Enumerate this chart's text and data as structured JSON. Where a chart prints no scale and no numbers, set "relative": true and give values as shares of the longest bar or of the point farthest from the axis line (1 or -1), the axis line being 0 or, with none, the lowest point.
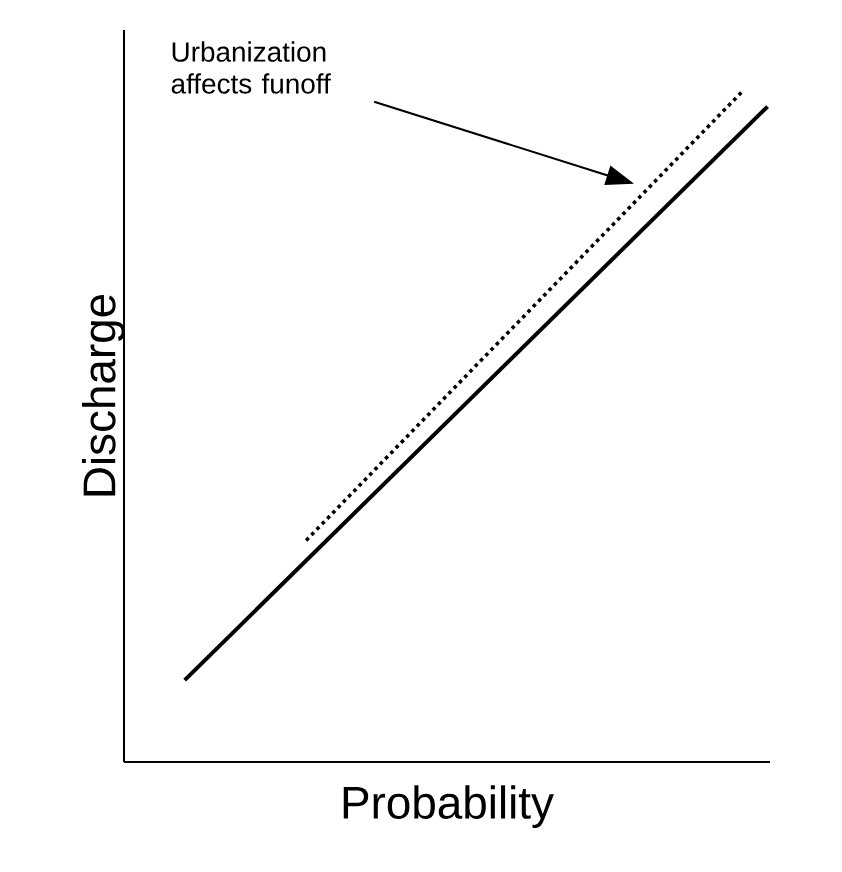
{
  "chart_data": {
    "type": "line",
    "relative": true,
    "xlabel": "Probability",
    "ylabel": "Discharge",
    "categories": [
      null,
      null,
      null,
      null,
      null,
      null,
      null,
      null,
      null,
      null,
      null,
      null,
      null,
      null,
      null,
      null,
      null,
      null,
      null,
      null,
      null,
      null,
      null,
      null,
      null
    ],
    "series": [
      {
        "color": "#000000",
        "line_style": "solid",
        "values": [
          0.122,
          null,
          null,
          null,
          null,
          null,
          null,
          null,
          null,
          null,
          null,
          null,
          null,
          null,
          null,
          null,
          null,
          null,
          null,
          null,
          null,
          null,
          null,
          null,
          0.976
        ]
      },
      {
        "color": "#000000",
        "line_style": "dotted",
        "values": [
          null,
          null,
          null,
          null,
          null,
          0.33,
          null,
          null,
          null,
          null,
          null,
          null,
          null,
          null,
          null,
          null,
          null,
          null,
          null,
          null,
          null,
          null,
          null,
          1.0,
          null
        ]
      }
    ],
    "annotations": [
      "Urbanization\naffects funoff"
    ],
    "legend": false,
    "marker": "none"
  }
}
